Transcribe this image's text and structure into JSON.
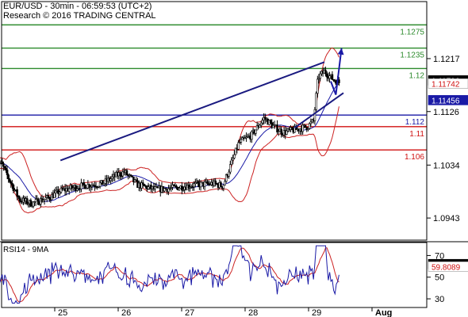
{
  "header": {
    "line1": "EUR/USD - 30min - 06:59:53 (UTC+2)",
    "line2": "Research © 2016 TRADING CENTRAL"
  },
  "chart_data": {
    "type": "candlestick",
    "instrument": "EUR/USD",
    "interval": "30min",
    "price_axis": {
      "min": 1.0905,
      "max": 1.1315,
      "ticks": [
        1.1217,
        1.1126,
        1.1034,
        1.0943
      ]
    },
    "x_axis": {
      "labels": [
        "25",
        "26",
        "27",
        "28",
        "29",
        "Aug"
      ]
    },
    "grid": false,
    "horizontal_levels": [
      {
        "label": "1.1275",
        "value": 1.1275,
        "color": "#2e8b2e",
        "role": "resistance"
      },
      {
        "label": "1.1235",
        "value": 1.1235,
        "color": "#2e8b2e",
        "role": "resistance"
      },
      {
        "label": "1.12",
        "value": 1.12,
        "color": "#2e8b2e",
        "role": "resistance"
      },
      {
        "label": "1.112",
        "value": 1.112,
        "color": "#1a1aa6",
        "role": "pivot"
      },
      {
        "label": "1.11",
        "value": 1.11,
        "color": "#d01010",
        "role": "support"
      },
      {
        "label": "1.106",
        "value": 1.106,
        "color": "#d01010",
        "role": "support"
      }
    ],
    "price_badges": [
      {
        "label": "1.11796",
        "value": 1.11796,
        "bg": "#000000",
        "fg": "#ffffff"
      },
      {
        "label": "1.11742",
        "value": 1.11742,
        "bg": "#ffffff",
        "fg": "#d01010"
      },
      {
        "label": "1.11456",
        "value": 1.11456,
        "bg": "#1a1aa6",
        "fg": "#ffffff"
      }
    ],
    "channel": {
      "upper": [
        [
          1.09,
          1.1042
        ],
        [
          5.25,
          1.1211
        ]
      ],
      "lower": [
        [
          4.78,
          1.1098
        ],
        [
          5.55,
          1.1158
        ]
      ]
    },
    "projection_arrow": [
      [
        5.35,
        1.1178
      ],
      [
        5.43,
        1.1155
      ],
      [
        5.52,
        1.1235
      ]
    ],
    "rsi": {
      "title": "RSI14 - 9MA",
      "axis": {
        "min": 22,
        "max": 82,
        "ticks": [
          70,
          50,
          30
        ]
      },
      "badges": [
        {
          "label": "62.084",
          "value": 62.084,
          "bg": "#000000",
          "fg": "#ffffff"
        },
        {
          "label": "59.8089",
          "value": 59.8089,
          "bg": "#ffffff",
          "fg": "#d01010"
        }
      ]
    },
    "colors": {
      "candle": "#000000",
      "bollinger": "#cc2222",
      "moving_average": "#1a1aa6",
      "channel": "#1a1a80",
      "rsi": "#1a1aa6",
      "rsi_ma": "#cc2222"
    }
  }
}
